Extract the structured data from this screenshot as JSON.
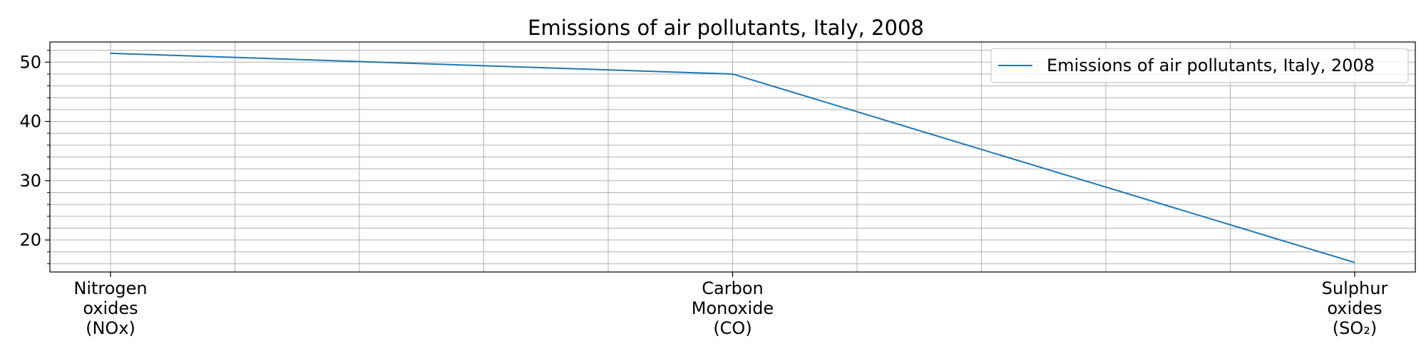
{
  "chart_data": {
    "type": "line",
    "title": "Emissions of air pollutants, Italy, 2008",
    "xlabel": "",
    "ylabel": "",
    "categories": [
      [
        "Nitrogen",
        "oxides",
        "(NOx)"
      ],
      [
        "Carbon",
        "Monoxide",
        "(CO)"
      ],
      [
        "Sulphur",
        "oxides",
        "(SO₂)"
      ]
    ],
    "series": [
      {
        "name": "Emissions of air pollutants, Italy, 2008",
        "values": [
          51.5,
          48.0,
          16.2
        ],
        "color": "#1f77b4"
      }
    ],
    "ylim": [
      14.6,
      53.4
    ],
    "yticks": [
      20,
      30,
      40,
      50
    ],
    "grid": true,
    "minor_grid": true,
    "legend_position": "top-right"
  }
}
